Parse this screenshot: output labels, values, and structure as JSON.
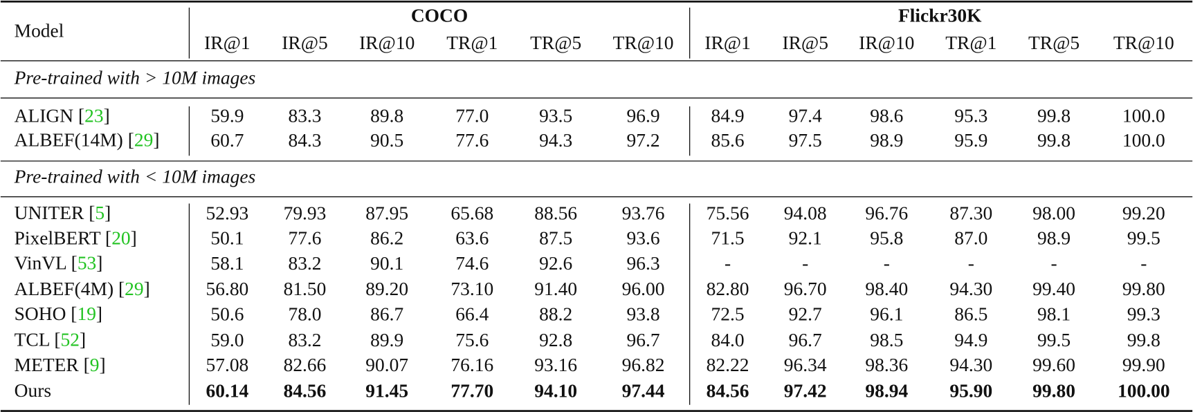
{
  "table": {
    "model_header": "Model",
    "groups": [
      "COCO",
      "Flickr30K"
    ],
    "columns": [
      "IR@1",
      "IR@5",
      "IR@10",
      "TR@1",
      "TR@5",
      "TR@10",
      "IR@1",
      "IR@5",
      "IR@10",
      "TR@1",
      "TR@5",
      "TR@10"
    ],
    "sections": [
      {
        "title": "Pre-trained with > 10M images",
        "rows": [
          {
            "model": [
              "ALIGN [",
              "23",
              "]"
            ],
            "values": [
              "59.9",
              "83.3",
              "89.8",
              "77.0",
              "93.5",
              "96.9",
              "84.9",
              "97.4",
              "98.6",
              "95.3",
              "99.8",
              "100.0"
            ]
          },
          {
            "model": [
              "ALBEF(14M) [",
              "29",
              "]"
            ],
            "values": [
              "60.7",
              "84.3",
              "90.5",
              "77.6",
              "94.3",
              "97.2",
              "85.6",
              "97.5",
              "98.9",
              "95.9",
              "99.8",
              "100.0"
            ]
          }
        ]
      },
      {
        "title": "Pre-trained with < 10M images",
        "rows": [
          {
            "model": [
              "UNITER [",
              "5",
              "]"
            ],
            "values": [
              "52.93",
              "79.93",
              "87.95",
              "65.68",
              "88.56",
              "93.76",
              "75.56",
              "94.08",
              "96.76",
              "87.30",
              "98.00",
              "99.20"
            ]
          },
          {
            "model": [
              "PixelBERT [",
              "20",
              "]"
            ],
            "values": [
              "50.1",
              "77.6",
              "86.2",
              "63.6",
              "87.5",
              "93.6",
              "71.5",
              "92.1",
              "95.8",
              "87.0",
              "98.9",
              "99.5"
            ]
          },
          {
            "model": [
              "VinVL [",
              "53",
              "]"
            ],
            "values": [
              "58.1",
              "83.2",
              "90.1",
              "74.6",
              "92.6",
              "96.3",
              "-",
              "-",
              "-",
              "-",
              "-",
              "-"
            ]
          },
          {
            "model": [
              "ALBEF(4M) [",
              "29",
              "]"
            ],
            "values": [
              "56.80",
              "81.50",
              "89.20",
              "73.10",
              "91.40",
              "96.00",
              "82.80",
              "96.70",
              "98.40",
              "94.30",
              "99.40",
              "99.80"
            ]
          },
          {
            "model": [
              "SOHO [",
              "19",
              "]"
            ],
            "values": [
              "50.6",
              "78.0",
              "86.7",
              "66.4",
              "88.2",
              "93.8",
              "72.5",
              "92.7",
              "96.1",
              "86.5",
              "98.1",
              "99.3"
            ]
          },
          {
            "model": [
              "TCL [",
              "52",
              "]"
            ],
            "values": [
              "59.0",
              "83.2",
              "89.9",
              "75.6",
              "92.8",
              "96.7",
              "84.0",
              "96.7",
              "98.5",
              "94.9",
              "99.5",
              "99.8"
            ]
          },
          {
            "model": [
              "METER [",
              "9",
              "]"
            ],
            "values": [
              "57.08",
              "82.66",
              "90.07",
              "76.16",
              "93.16",
              "96.82",
              "82.22",
              "96.34",
              "98.36",
              "94.30",
              "99.60",
              "99.90"
            ]
          },
          {
            "model": [
              "Ours"
            ],
            "bold": true,
            "values": [
              "60.14",
              "84.56",
              "91.45",
              "77.70",
              "94.10",
              "97.44",
              "84.56",
              "97.42",
              "98.94",
              "95.90",
              "99.80",
              "100.00"
            ]
          }
        ]
      }
    ]
  }
}
